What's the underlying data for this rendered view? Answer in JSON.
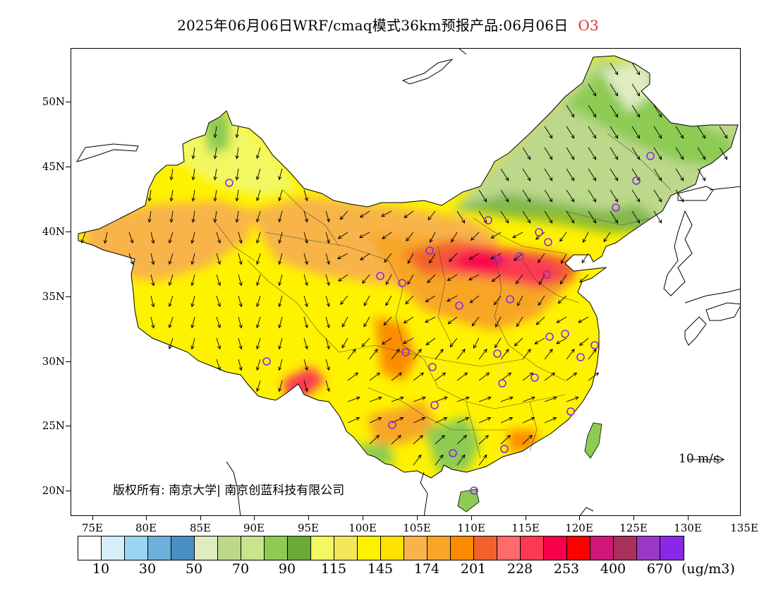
{
  "title": {
    "text": "2025年06月06日WRF/cmaq模式36km预报产品:06月06日",
    "pollutant": "O3",
    "pollutant_color": "#e0302a"
  },
  "lat_labels": [
    "50N",
    "45N",
    "40N",
    "35N",
    "30N",
    "25N",
    "20N"
  ],
  "lon_labels": [
    "75E",
    "80E",
    "85E",
    "90E",
    "95E",
    "100E",
    "105E",
    "110E",
    "115E",
    "120E",
    "125E",
    "130E",
    "135E"
  ],
  "copyright": "版权所有: 南京大学| 南京创蓝科技有限公司",
  "wind_reference": "10 m/s",
  "legend": {
    "colors": [
      "#ffffff",
      "#d6eefa",
      "#9bd5f3",
      "#6cb0dc",
      "#4a8fc3",
      "#dfecc0",
      "#bcd88a",
      "#c8e48c",
      "#8dcb52",
      "#6aab36",
      "#f2f862",
      "#f4e85a",
      "#fff200",
      "#ffe100",
      "#f8b44a",
      "#f8a528",
      "#fb8c00",
      "#f2622c",
      "#ff6a6a",
      "#fa3a52",
      "#f8004a",
      "#ff0000",
      "#d01878",
      "#a8305c",
      "#9a38c6",
      "#8a28e6"
    ],
    "labels": [
      "10",
      "30",
      "50",
      "70",
      "90",
      "115",
      "145",
      "174",
      "201",
      "228",
      "253",
      "400",
      "670"
    ],
    "unit": "(ug/m3)"
  }
}
